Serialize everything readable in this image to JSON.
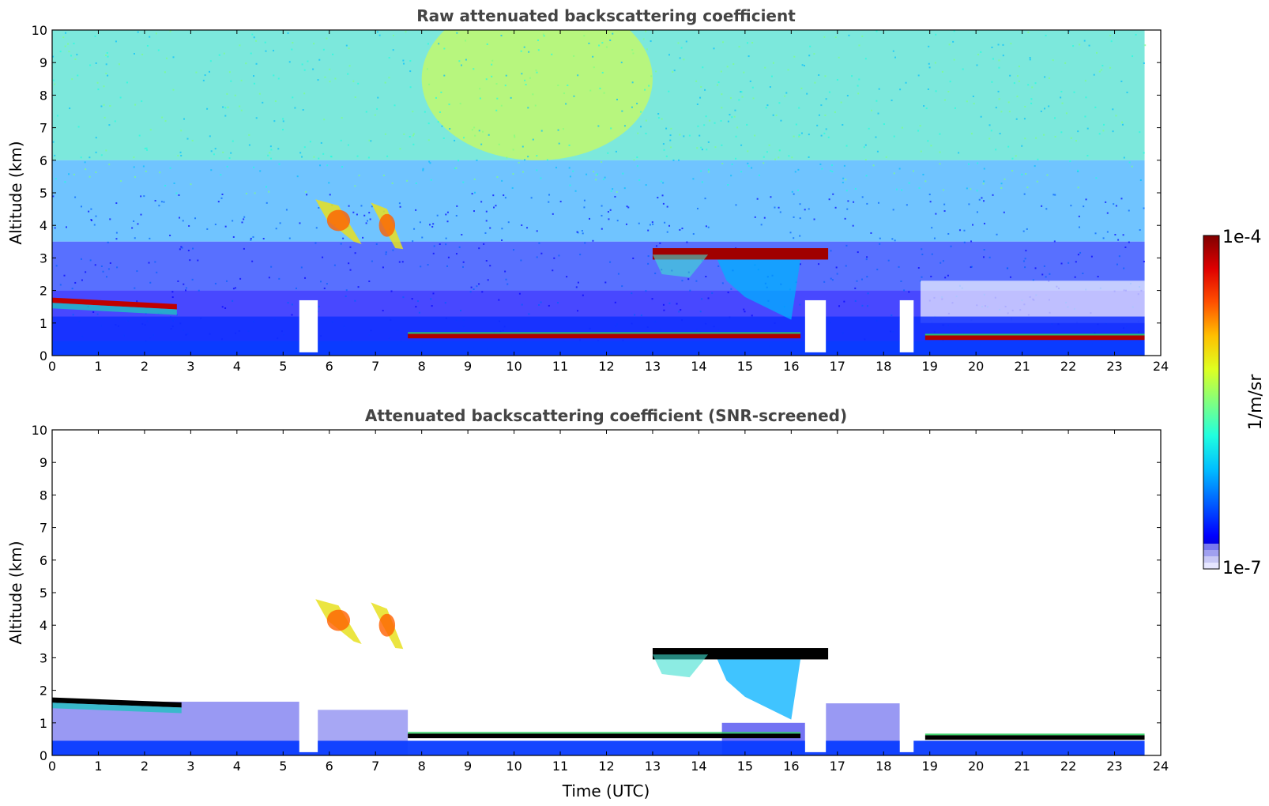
{
  "colors": {
    "jet": [
      "#00008f",
      "#0000ff",
      "#0060ff",
      "#00bfff",
      "#20ffdf",
      "#80ff80",
      "#dfff20",
      "#ffbf00",
      "#ff5000",
      "#df0000",
      "#800000"
    ],
    "colorbar_low": [
      "#e6e6ff",
      "#c8c8f5",
      "#a0a0f0",
      "#7878f0"
    ],
    "noise_blue": "#1a1aff",
    "black_layer": "#000000"
  },
  "colorbar": {
    "label": "1/m/sr",
    "max_label": "1e-4",
    "min_label": "1e-7"
  },
  "chart_data": [
    {
      "type": "heatmap",
      "title": "Raw attenuated backscattering coefficient",
      "xlabel": "",
      "ylabel": "Altitude (km)",
      "xlim": [
        0,
        24
      ],
      "ylim": [
        0,
        10
      ],
      "x_ticks": [
        "0",
        "1",
        "2",
        "3",
        "4",
        "5",
        "6",
        "7",
        "8",
        "9",
        "10",
        "11",
        "12",
        "13",
        "14",
        "15",
        "16",
        "17",
        "18",
        "19",
        "20",
        "21",
        "22",
        "23",
        "24"
      ],
      "y_ticks": [
        "0",
        "1",
        "2",
        "3",
        "4",
        "5",
        "6",
        "7",
        "8",
        "9",
        "10"
      ],
      "data_end_time": 23.65,
      "features": [
        {
          "kind": "boundary_layer_top",
          "time": [
            0.0,
            2.7
          ],
          "altitude_km": [
            1.7,
            1.5
          ]
        },
        {
          "kind": "low_cloud",
          "time": [
            7.7,
            16.2
          ],
          "altitude_km": 0.6
        },
        {
          "kind": "low_cloud",
          "time": [
            18.9,
            23.65
          ],
          "altitude_km": 0.55
        },
        {
          "kind": "mid_cloud",
          "time": [
            5.7,
            6.7
          ],
          "altitude_km": [
            3.5,
            4.8
          ]
        },
        {
          "kind": "mid_cloud",
          "time": [
            6.9,
            7.6
          ],
          "altitude_km": [
            3.3,
            4.7
          ]
        },
        {
          "kind": "mid_cloud",
          "time": [
            13.0,
            16.8
          ],
          "altitude_km": [
            2.9,
            3.4
          ]
        },
        {
          "kind": "data_gap",
          "time": [
            5.35,
            5.75
          ]
        },
        {
          "kind": "data_gap",
          "time": [
            16.3,
            16.75
          ]
        },
        {
          "kind": "data_gap",
          "time": [
            18.35,
            18.65
          ]
        }
      ]
    },
    {
      "type": "heatmap",
      "title": "Attenuated backscattering coefficient (SNR-screened)",
      "xlabel": "Time (UTC)",
      "ylabel": "Altitude (km)",
      "xlim": [
        0,
        24
      ],
      "ylim": [
        0,
        10
      ],
      "x_ticks": [
        "0",
        "1",
        "2",
        "3",
        "4",
        "5",
        "6",
        "7",
        "8",
        "9",
        "10",
        "11",
        "12",
        "13",
        "14",
        "15",
        "16",
        "17",
        "18",
        "19",
        "20",
        "21",
        "22",
        "23",
        "24"
      ],
      "y_ticks": [
        "0",
        "1",
        "2",
        "3",
        "4",
        "5",
        "6",
        "7",
        "8",
        "9",
        "10"
      ],
      "data_end_time": 23.65,
      "features": [
        {
          "kind": "boundary_layer_top",
          "time": [
            0.0,
            2.8
          ],
          "altitude_km": [
            1.7,
            1.55
          ]
        },
        {
          "kind": "low_cloud",
          "time": [
            7.7,
            16.2
          ],
          "altitude_km": 0.6
        },
        {
          "kind": "low_cloud",
          "time": [
            18.9,
            23.65
          ],
          "altitude_km": 0.55
        },
        {
          "kind": "mid_cloud",
          "time": [
            5.7,
            6.7
          ],
          "altitude_km": [
            3.5,
            4.8
          ]
        },
        {
          "kind": "mid_cloud",
          "time": [
            6.9,
            7.6
          ],
          "altitude_km": [
            3.3,
            4.7
          ]
        },
        {
          "kind": "mid_cloud",
          "time": [
            13.0,
            16.8
          ],
          "altitude_km": [
            2.9,
            3.4
          ]
        },
        {
          "kind": "data_gap",
          "time": [
            5.35,
            5.75
          ]
        },
        {
          "kind": "data_gap",
          "time": [
            16.3,
            16.75
          ]
        },
        {
          "kind": "data_gap",
          "time": [
            18.35,
            18.65
          ]
        }
      ]
    }
  ]
}
